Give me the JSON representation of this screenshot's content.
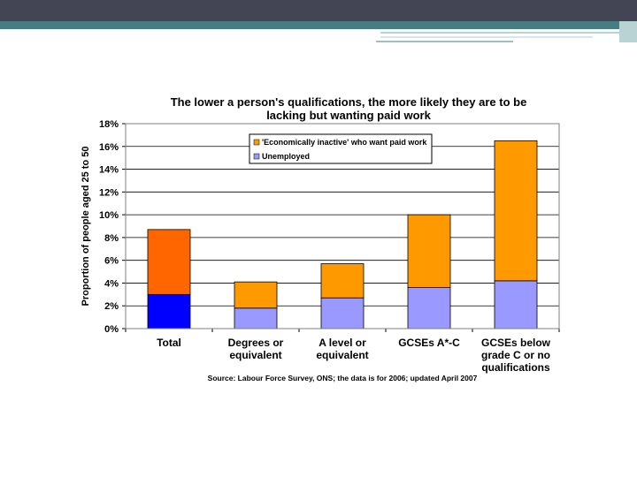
{
  "colors": {
    "header_dark": "#434454",
    "header_teal": "#467d83",
    "accent_light": "#b9d2d4",
    "series_inactive": "#ff9900",
    "series_unemployed": "#9999ff",
    "total_inactive": "#ff6600",
    "total_unemployed": "#0000ff",
    "plot_border": "#808080",
    "gridline": "#000000"
  },
  "chart_data": {
    "type": "bar",
    "stacked": true,
    "title": "The lower a person's qualifications, the more likely they are to be lacking but wanting paid work",
    "title_lines": [
      "The lower a person's qualifications, the more likely they are to be",
      "lacking but wanting paid work"
    ],
    "ylabel": "Proportion of people aged 25 to 50",
    "xlabel": "",
    "ylim": [
      0,
      18
    ],
    "yticks": [
      "0%",
      "2%",
      "4%",
      "6%",
      "8%",
      "10%",
      "12%",
      "14%",
      "16%",
      "18%"
    ],
    "grid": true,
    "legend_position": "top-center",
    "categories": [
      "Total",
      "Degrees or equivalent",
      "A level or equivalent",
      "GCSEs A*-C",
      "GCSEs below grade C or no qualifications"
    ],
    "category_lines": [
      [
        "Total"
      ],
      [
        "Degrees or",
        "equivalent"
      ],
      [
        "A level or",
        "equivalent"
      ],
      [
        "GCSEs A*-C"
      ],
      [
        "GCSEs below",
        "grade C or no",
        "qualifications"
      ]
    ],
    "series": [
      {
        "name": "Unemployed",
        "values": [
          3.0,
          1.8,
          2.7,
          3.6,
          4.2
        ]
      },
      {
        "name": "'Economically inactive' who want paid work",
        "values": [
          5.7,
          2.3,
          3.0,
          6.4,
          12.3
        ]
      }
    ],
    "legend": [
      {
        "label": "'Economically inactive' who want paid work"
      },
      {
        "label": "Unemployed"
      }
    ],
    "source": "Source: Labour Force Survey, ONS; the data is for 2006; updated April 2007"
  }
}
